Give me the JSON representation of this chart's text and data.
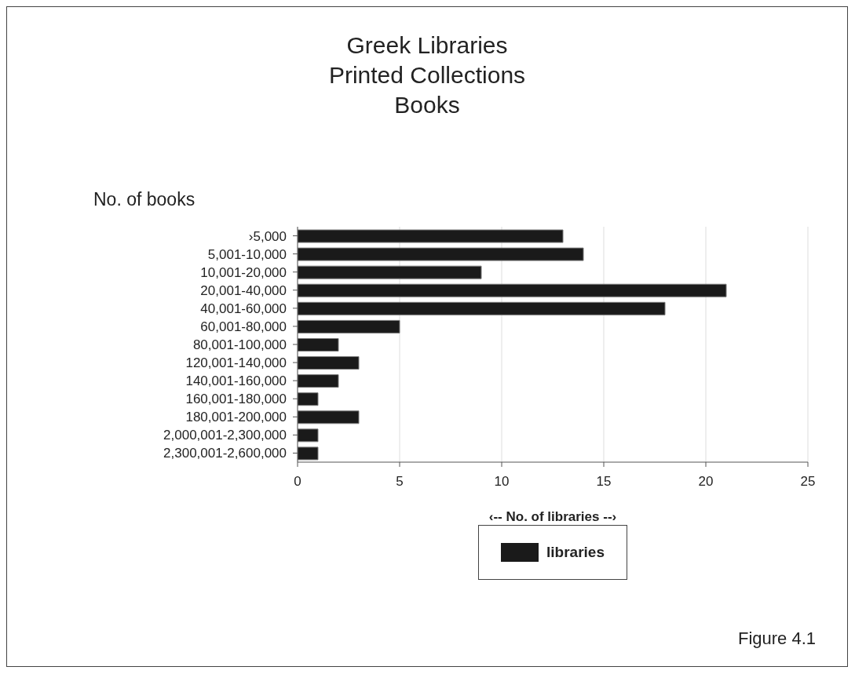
{
  "chart_data": {
    "type": "bar",
    "orientation": "horizontal",
    "title": "Greek Libraries\nPrinted Collections\nBooks",
    "ylabel": "No. of books",
    "xlabel": "‹-- No. of libraries --›",
    "categories": [
      "›5,000",
      "5,001-10,000",
      "10,001-20,000",
      "20,001-40,000",
      "40,001-60,000",
      "60,001-80,000",
      "80,001-100,000",
      "120,001-140,000",
      "140,001-160,000",
      "160,001-180,000",
      "180,001-200,000",
      "2,000,001-2,300,000",
      "2,300,001-2,600,000"
    ],
    "series": [
      {
        "name": "libraries",
        "color": "#1a1a1a",
        "values": [
          13,
          14,
          9,
          21,
          18,
          5,
          2,
          3,
          2,
          1,
          3,
          1,
          1
        ]
      }
    ],
    "xlim": [
      0,
      25
    ],
    "xticks": [
      0,
      5,
      10,
      15,
      20,
      25
    ],
    "grid": "x",
    "legend": "bottom",
    "annotations": [
      "Figure 4.1"
    ]
  }
}
